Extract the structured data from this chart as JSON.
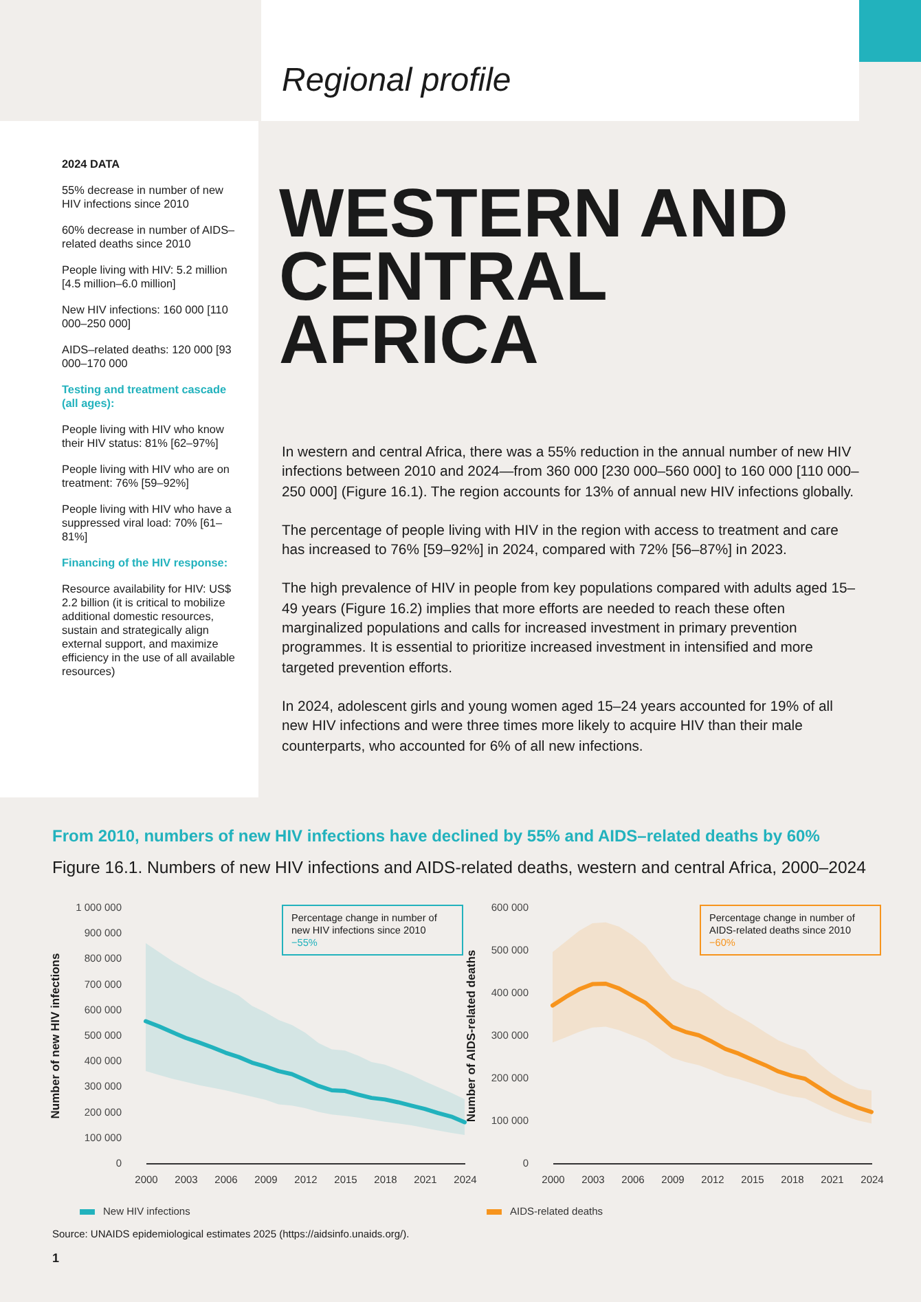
{
  "chart_data": [
    {
      "type": "other",
      "subtitle": "Regional profile",
      "title": "WESTERN AND CENTRAL AFRICA",
      "annotations": [
        "In western and central Africa, there was a 55% reduction in the annual number of new HIV infections between 2010 and 2024—from 360 000 [230 000–560 000] to 160 000 [110 000–250 000] (Figure 16.1). The region accounts for 13% of annual new HIV infections globally.",
        "The percentage of people living with HIV in the region with access to treatment and care has increased to 76% [59–92%] in 2024, compared with 72% [56–87%] in 2023.",
        "The high prevalence of HIV in people from key populations compared with adults aged 15–49 years (Figure 16.2) implies that more efforts are needed to reach these often marginalized populations and calls for increased investment in primary prevention programmes. It is essential to prioritize increased investment in intensified and more targeted prevention efforts.",
        "In 2024, adolescent girls and young women aged 15–24 years accounted for 19% of all new HIV infections and were three times more likely to acquire HIV than their male counterparts, who accounted for 6% of all new infections."
      ]
    },
    {
      "type": "other",
      "title": "2024 DATA",
      "annotations": [
        "55% decrease in number of new HIV infections since 2010",
        "60% decrease in number of AIDS–related deaths since 2010",
        "People living with HIV: 5.2 million [4.5 million–6.0 million]",
        "New HIV infections: 160 000 [110 000–250 000]",
        "AIDS–related deaths: 120 000 [93 000–170 000"
      ]
    },
    {
      "type": "other",
      "title": "Testing and treatment cascade (all ages):",
      "annotations": [
        "People living with HIV who know their HIV status: 81% [62–97%]",
        "People living with HIV who are on treatment: 76% [59–92%]",
        "People living with HIV who have a suppressed viral load: 70% [61–81%]"
      ]
    },
    {
      "type": "other",
      "title": "Financing of the HIV response:",
      "annotations": [
        "Resource availability for HIV: US$ 2.2 billion (it is critical to mobilize additional domestic resources, sustain and strategically align external support, and maximize efficiency in the use of all available resources)"
      ]
    },
    {
      "type": "line",
      "title": "From 2010, numbers of new HIV infections have declined by 55% and AIDS–related deaths by 60%",
      "subtitle": "Figure 16.1. Numbers of new HIV infections and AIDS-related deaths, western and central Africa, 2000–2024",
      "ylabel": "Number of new HIV infections",
      "legend": "bottom left",
      "x": [
        2000,
        2001,
        2002,
        2003,
        2004,
        2005,
        2006,
        2007,
        2008,
        2009,
        2010,
        2011,
        2012,
        2013,
        2014,
        2015,
        2016,
        2017,
        2018,
        2019,
        2020,
        2021,
        2022,
        2023,
        2024
      ],
      "xlim": [
        2000,
        2024
      ],
      "xticks": [
        2000,
        2003,
        2006,
        2009,
        2012,
        2015,
        2018,
        2021,
        2024
      ],
      "ylim": [
        0,
        1000000
      ],
      "yticks": [
        0,
        {
          "value": 100000,
          "label": "100 000"
        },
        {
          "value": 200000,
          "label": "200 000"
        },
        {
          "value": 300000,
          "label": "300 000"
        },
        {
          "value": 400000,
          "label": "400 000"
        },
        {
          "value": 500000,
          "label": "500 000"
        },
        {
          "value": 600000,
          "label": "600 000"
        },
        {
          "value": 700000,
          "label": "700 000"
        },
        {
          "value": 800000,
          "label": "800 000"
        },
        {
          "value": 900000,
          "label": "900 000"
        },
        {
          "value": 1000000,
          "label": "1 000 000"
        }
      ],
      "series": [
        {
          "name": "New HIV infections",
          "color": "#22b2bd",
          "values": [
            555000,
            535000,
            512000,
            490000,
            472000,
            453000,
            432000,
            415000,
            393000,
            378000,
            360000,
            348000,
            325000,
            302000,
            285000,
            282000,
            268000,
            255000,
            249000,
            238000,
            225000,
            212000,
            196000,
            182000,
            160000
          ],
          "lower": [
            360000,
            345000,
            330000,
            318000,
            305000,
            295000,
            285000,
            272000,
            260000,
            248000,
            230000,
            225000,
            215000,
            200000,
            190000,
            185000,
            178000,
            170000,
            162000,
            155000,
            148000,
            138000,
            128000,
            118000,
            110000
          ],
          "upper": [
            860000,
            825000,
            790000,
            760000,
            730000,
            703000,
            680000,
            655000,
            615000,
            590000,
            560000,
            540000,
            510000,
            470000,
            445000,
            440000,
            420000,
            395000,
            385000,
            365000,
            345000,
            320000,
            297000,
            275000,
            250000
          ]
        }
      ],
      "annotations": [
        "Percentage change in number of new HIV infections since 2010",
        "−55%"
      ]
    },
    {
      "type": "line",
      "ylabel": "Number of AIDS-related deaths",
      "legend": "bottom left",
      "x": [
        2000,
        2001,
        2002,
        2003,
        2004,
        2005,
        2006,
        2007,
        2008,
        2009,
        2010,
        2011,
        2012,
        2013,
        2014,
        2015,
        2016,
        2017,
        2018,
        2019,
        2020,
        2021,
        2022,
        2023,
        2024
      ],
      "xlim": [
        2000,
        2024
      ],
      "xticks": [
        2000,
        2003,
        2006,
        2009,
        2012,
        2015,
        2018,
        2021,
        2024
      ],
      "ylim": [
        0,
        600000
      ],
      "yticks": [
        0,
        {
          "value": 100000,
          "label": "100 000"
        },
        {
          "value": 200000,
          "label": "200 000"
        },
        {
          "value": 300000,
          "label": "300 000"
        },
        {
          "value": 400000,
          "label": "400 000"
        },
        {
          "value": 500000,
          "label": "500 000"
        },
        {
          "value": 600000,
          "label": "600 000"
        }
      ],
      "series": [
        {
          "name": "AIDS-related deaths",
          "color": "#f7941d",
          "values": [
            370000,
            390000,
            408000,
            420000,
            421000,
            410000,
            393000,
            376000,
            348000,
            320000,
            308000,
            300000,
            285000,
            268000,
            257000,
            243000,
            230000,
            215000,
            205000,
            198000,
            178000,
            158000,
            143000,
            130000,
            120000
          ],
          "lower": [
            283000,
            295000,
            308000,
            318000,
            320000,
            312000,
            300000,
            288000,
            268000,
            247000,
            237000,
            230000,
            218000,
            205000,
            197000,
            187000,
            177000,
            165000,
            157000,
            152000,
            137000,
            122000,
            110000,
            100000,
            93000
          ],
          "upper": [
            495000,
            520000,
            545000,
            563000,
            565000,
            555000,
            535000,
            510000,
            470000,
            432000,
            415000,
            405000,
            385000,
            362000,
            345000,
            327000,
            307000,
            288000,
            275000,
            265000,
            235000,
            210000,
            190000,
            175000,
            170000
          ]
        }
      ],
      "annotations": [
        "Percentage change in number of AIDS-related deaths since 2010",
        "−60%",
        "Source: UNAIDS epidemiological estimates 2025 (https://aidsinfo.unaids.org/).",
        "1"
      ]
    }
  ]
}
